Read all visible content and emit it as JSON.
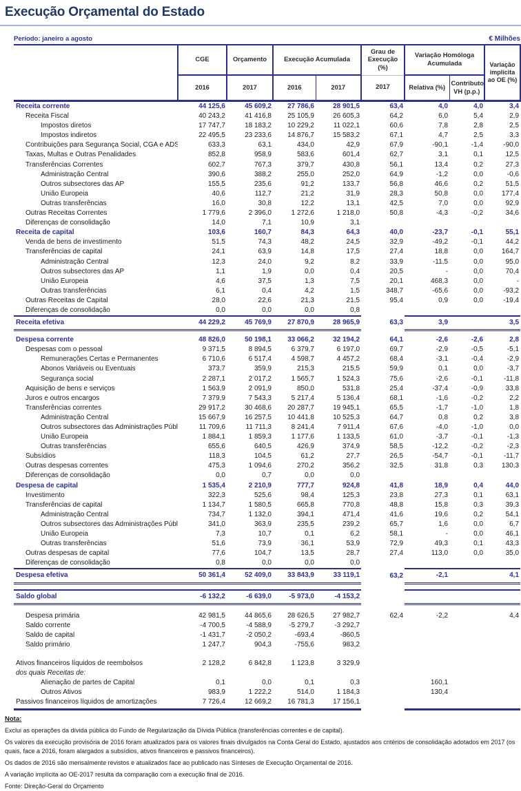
{
  "page": {
    "title": "Execução Orçamental do Estado",
    "period_label": "Período: janeiro a agosto",
    "units_label": "€ Milhões"
  },
  "colors": {
    "navy_border": "#2b2e8c",
    "navy_text": "#2e3192",
    "title_text": "#1f3864",
    "title_rule": "#a8b4d6"
  },
  "table": {
    "header": {
      "cge": "CGE",
      "orcamento": "Orçamento",
      "exec": "Execução Acumulada",
      "grau": "Grau de Execução (%)",
      "vh": "Variação Homóloga Acumulada",
      "var_oe": "Variação implícita ao OE (%)",
      "y2016a": "2016",
      "y2017a": "2017",
      "y2016b": "2016",
      "y2017b": "2017",
      "y2017c": "2017",
      "relativa": "Relativa (%)",
      "contributo": "Contributo VH (p.p.)"
    },
    "columns": [
      "label",
      "CGE 2016",
      "Orçamento 2017",
      "Execução Acumulada 2016",
      "Execução Acumulada 2017",
      "Grau de Execução (%) 2017",
      "Variação Homóloga Relativa (%)",
      "Contributo VH (p.p.)",
      "Variação implícita ao OE (%)"
    ],
    "rows": [
      {
        "t": "section",
        "label": "Receita corrente",
        "v": [
          "44 125,6",
          "45 609,2",
          "27 786,6",
          "28 901,5",
          "63,4",
          "4,0",
          "4,0",
          "3,4"
        ]
      },
      {
        "t": "l1",
        "label": "Receita Fiscal",
        "v": [
          "40 243,2",
          "41 416,8",
          "25 105,9",
          "26 605,3",
          "64,2",
          "6,0",
          "5,4",
          "2,9"
        ]
      },
      {
        "t": "l2",
        "label": "Impostos diretos",
        "v": [
          "17 747,7",
          "18 183,2",
          "10 229,2",
          "11 022,1",
          "60,6",
          "7,8",
          "2,8",
          "2,5"
        ]
      },
      {
        "t": "l2",
        "label": "Impostos indiretos",
        "v": [
          "22 495,5",
          "23 233,6",
          "14 876,7",
          "15 583,2",
          "67,1",
          "4,7",
          "2,5",
          "3,3"
        ]
      },
      {
        "t": "l1",
        "label": "Contribuições para Segurança Social, CGA e ADSE",
        "v": [
          "633,3",
          "63,1",
          "434,0",
          "42,9",
          "67,9",
          "-90,1",
          "-1,4",
          "-90,0"
        ]
      },
      {
        "t": "l1",
        "label": "Taxas, Multas e Outras Penalidades",
        "v": [
          "852,8",
          "958,9",
          "583,6",
          "601,4",
          "62,7",
          "3,1",
          "0,1",
          "12,5"
        ]
      },
      {
        "t": "l1",
        "label": "Transferências Correntes",
        "v": [
          "602,7",
          "767,3",
          "379,7",
          "430,8",
          "56,1",
          "13,4",
          "0,2",
          "27,3"
        ]
      },
      {
        "t": "l2",
        "label": "Administração Central",
        "v": [
          "390,6",
          "388,2",
          "255,0",
          "252,0",
          "64,9",
          "-1,2",
          "0,0",
          "-0,6"
        ]
      },
      {
        "t": "l2",
        "label": "Outros subsectores das AP",
        "v": [
          "155,5",
          "235,6",
          "91,2",
          "133,7",
          "56,8",
          "46,6",
          "0,2",
          "51,5"
        ]
      },
      {
        "t": "l2",
        "label": "União Europeia",
        "v": [
          "40,6",
          "112,7",
          "21,2",
          "31,9",
          "28,3",
          "50,8",
          "0,0",
          "177,4"
        ]
      },
      {
        "t": "l2",
        "label": "Outras transferências",
        "v": [
          "16,0",
          "30,8",
          "12,2",
          "13,1",
          "42,5",
          "7,0",
          "0,0",
          "92,9"
        ]
      },
      {
        "t": "l1",
        "label": "Outras Receitas Correntes",
        "v": [
          "1 779,6",
          "2 396,0",
          "1 272,6",
          "1 218,0",
          "50,8",
          "-4,3",
          "-0,2",
          "34,6"
        ]
      },
      {
        "t": "l1",
        "label": "Diferenças de consolidação",
        "v": [
          "14,0",
          "7,1",
          "10,9",
          "3,1",
          "",
          "",
          "",
          ""
        ]
      },
      {
        "t": "section",
        "label": "Receita de capital",
        "v": [
          "103,6",
          "160,7",
          "84,3",
          "64,3",
          "40,0",
          "-23,7",
          "-0,1",
          "55,1"
        ]
      },
      {
        "t": "l1",
        "label": "Venda de bens de investimento",
        "v": [
          "51,5",
          "74,3",
          "48,2",
          "24,5",
          "32,9",
          "-49,2",
          "-0,1",
          "44,2"
        ]
      },
      {
        "t": "l1",
        "label": "Transferências de capital",
        "v": [
          "24,1",
          "63,9",
          "14,8",
          "17,5",
          "27,4",
          "18,8",
          "0,0",
          "164,7"
        ]
      },
      {
        "t": "l2",
        "label": "Administração Central",
        "v": [
          "12,3",
          "24,0",
          "9,2",
          "8,2",
          "33,9",
          "-11,5",
          "0,0",
          "95,0"
        ]
      },
      {
        "t": "l2",
        "label": "Outros subsectores das AP",
        "v": [
          "1,1",
          "1,9",
          "0,0",
          "0,4",
          "20,5",
          "-",
          "0,0",
          "70,4"
        ]
      },
      {
        "t": "l2",
        "label": "União Europeia",
        "v": [
          "4,6",
          "37,5",
          "1,3",
          "7,5",
          "20,1",
          "468,3",
          "0,0",
          "-"
        ]
      },
      {
        "t": "l2",
        "label": "Outras transferências",
        "v": [
          "6,1",
          "0,4",
          "4,2",
          "1,5",
          "348,7",
          "-65,6",
          "0,0",
          "-93,2"
        ]
      },
      {
        "t": "l1",
        "label": "Outras Receitas de Capital",
        "v": [
          "28,0",
          "22,6",
          "21,3",
          "21,5",
          "95,4",
          "0,9",
          "0,0",
          "-19,4"
        ]
      },
      {
        "t": "l1",
        "label": "Diferenças de consolidação",
        "v": [
          "0,0",
          "0,0",
          "0,0",
          "0,8",
          "",
          "",
          "",
          ""
        ]
      },
      {
        "t": "total",
        "label": "Receita efetiva",
        "v": [
          "44 229,2",
          "45 769,9",
          "27 870,9",
          "28 965,9",
          "63,3",
          "3,9",
          "",
          "3,5"
        ]
      },
      {
        "t": "gap",
        "h": 6
      },
      {
        "t": "section",
        "label": "Despesa corrente",
        "v": [
          "48 826,0",
          "50 198,1",
          "33 066,2",
          "32 194,2",
          "64,1",
          "-2,6",
          "-2,6",
          "2,8"
        ]
      },
      {
        "t": "l1",
        "label": "Despesas com o pessoal",
        "v": [
          "9 371,5",
          "8 894,5",
          "6 379,7",
          "6 197,0",
          "69,7",
          "-2,9",
          "-0,5",
          "-5,1"
        ]
      },
      {
        "t": "l2",
        "label": "Remunerações Certas e Permanentes",
        "v": [
          "6 710,6",
          "6 517,4",
          "4 598,7",
          "4 457,2",
          "68,4",
          "-3,1",
          "-0,4",
          "-2,9"
        ]
      },
      {
        "t": "l2",
        "label": "Abonos Variáveis ou Eventuais",
        "v": [
          "373,7",
          "359,9",
          "215,3",
          "215,5",
          "59,9",
          "0,1",
          "0,0",
          "-3,7"
        ]
      },
      {
        "t": "l2",
        "label": "Segurança social",
        "v": [
          "2 287,1",
          "2 017,2",
          "1 565,7",
          "1 524,3",
          "75,6",
          "-2,6",
          "-0,1",
          "-11,8"
        ]
      },
      {
        "t": "l1",
        "label": "Aquisição de bens e serviços",
        "v": [
          "1 563,9",
          "2 091,9",
          "850,0",
          "531,8",
          "25,4",
          "-37,4",
          "-0,9",
          "33,8"
        ]
      },
      {
        "t": "l1",
        "label": "Juros e outros encargos",
        "v": [
          "7 379,9",
          "7 543,3",
          "5 217,4",
          "5 136,4",
          "68,1",
          "-1,6",
          "-0,2",
          "2,2"
        ]
      },
      {
        "t": "l1",
        "label": "Transferências correntes",
        "v": [
          "29 917,2",
          "30 468,6",
          "20 287,7",
          "19 945,1",
          "65,5",
          "-1,7",
          "-1,0",
          "1,8"
        ]
      },
      {
        "t": "l2",
        "label": "Administração Central",
        "v": [
          "15 667,9",
          "16 257,5",
          "10 441,8",
          "10 525,3",
          "64,7",
          "0,8",
          "0,2",
          "3,8"
        ]
      },
      {
        "t": "l2",
        "label": "Outros subsectores das Administrações Públicas",
        "v": [
          "11 709,6",
          "11 711,3",
          "8 241,4",
          "7 911,4",
          "67,6",
          "-4,0",
          "-1,0",
          "0,0"
        ]
      },
      {
        "t": "l2",
        "label": "União Europeia",
        "v": [
          "1 884,1",
          "1 859,3",
          "1 177,6",
          "1 133,5",
          "61,0",
          "-3,7",
          "-0,1",
          "-1,3"
        ]
      },
      {
        "t": "l2",
        "label": "Outras transferências",
        "v": [
          "655,6",
          "640,5",
          "426,9",
          "374,9",
          "58,5",
          "-12,2",
          "-0,2",
          "-2,3"
        ]
      },
      {
        "t": "l1",
        "label": "Subsídios",
        "v": [
          "118,3",
          "104,5",
          "61,2",
          "27,7",
          "26,5",
          "-54,7",
          "-0,1",
          "-11,7"
        ]
      },
      {
        "t": "l1",
        "label": "Outras despesas correntes",
        "v": [
          "475,3",
          "1 094,6",
          "270,2",
          "356,2",
          "32,5",
          "31,8",
          "0,3",
          "130,3"
        ]
      },
      {
        "t": "l1",
        "label": "Diferenças de consolidação",
        "v": [
          "0,0",
          "0,7",
          "0,0",
          "0,0",
          "",
          "",
          "",
          ""
        ]
      },
      {
        "t": "section",
        "label": "Despesa de capital",
        "v": [
          "1 535,4",
          "2 210,9",
          "777,7",
          "924,8",
          "41,8",
          "18,9",
          "0,4",
          "44,0"
        ]
      },
      {
        "t": "l1",
        "label": "Investimento",
        "v": [
          "322,3",
          "525,6",
          "98,4",
          "125,3",
          "23,8",
          "27,3",
          "0,1",
          "63,1"
        ]
      },
      {
        "t": "l1",
        "label": "Transferências de capital",
        "v": [
          "1 134,7",
          "1 580,5",
          "665,8",
          "770,8",
          "48,8",
          "15,8",
          "0,3",
          "39,3"
        ]
      },
      {
        "t": "l2",
        "label": "Administração Central",
        "v": [
          "734,7",
          "1 132,0",
          "394,1",
          "471,4",
          "41,6",
          "19,6",
          "0,2",
          "54,1"
        ]
      },
      {
        "t": "l2",
        "label": "Outros subsectores das Administrações Públicas",
        "v": [
          "341,0",
          "363,9",
          "235,5",
          "239,2",
          "65,7",
          "1,6",
          "0,0",
          "6,7"
        ]
      },
      {
        "t": "l2",
        "label": "União Europeia",
        "v": [
          "7,3",
          "10,7",
          "0,1",
          "6,2",
          "58,1",
          "-",
          "0,0",
          "46,1"
        ]
      },
      {
        "t": "l2",
        "label": "Outras transferências",
        "v": [
          "51,6",
          "73,9",
          "36,1",
          "53,9",
          "72,9",
          "49,3",
          "0,1",
          "43,3"
        ]
      },
      {
        "t": "l1",
        "label": "Outras despesas de capital",
        "v": [
          "77,6",
          "104,7",
          "13,5",
          "28,7",
          "27,4",
          "113,0",
          "0,0",
          "35,0"
        ]
      },
      {
        "t": "l1",
        "label": "Diferenças de consolidação",
        "v": [
          "0,8",
          "0,0",
          "0,0",
          "0,0",
          "",
          "",
          "",
          ""
        ]
      },
      {
        "t": "total",
        "label": "Despesa efetiva",
        "v": [
          "50 361,4",
          "52 409,0",
          "33 843,9",
          "33 119,1",
          "63,2",
          "-2,1",
          "",
          "4,1"
        ]
      },
      {
        "t": "gap",
        "h": 7
      },
      {
        "t": "total",
        "label": "Saldo global",
        "v": [
          "-6 132,2",
          "-6 639,0",
          "-5 973,0",
          "-4 153,2",
          "",
          "",
          "",
          ""
        ]
      },
      {
        "t": "gap",
        "h": 9
      },
      {
        "t": "memo1",
        "label": "Despesa primária",
        "v": [
          "42 981,5",
          "44 865,6",
          "28 626,5",
          "27 982,7",
          "62,4",
          "-2,2",
          "",
          "4,4"
        ]
      },
      {
        "t": "memo1",
        "label": "Saldo corrente",
        "v": [
          "-4 700,5",
          "-4 588,9",
          "-5 279,7",
          "-3 292,7",
          "",
          "",
          "",
          ""
        ]
      },
      {
        "t": "memo1",
        "label": "Saldo de capital",
        "v": [
          "-1 431,7",
          "-2 050,2",
          "-693,4",
          "-860,5",
          "",
          "",
          "",
          ""
        ]
      },
      {
        "t": "memo1",
        "label": "Saldo primário",
        "v": [
          "1 247,7",
          "904,3",
          "-755,6",
          "983,2",
          "",
          "",
          "",
          ""
        ]
      },
      {
        "t": "gap",
        "h": 13
      },
      {
        "t": "memo0",
        "label": "Ativos financeiros líquidos de reembolsos",
        "v": [
          "2 128,2",
          "6 842,8",
          "1 123,8",
          "3 329,9",
          "",
          "",
          "",
          ""
        ]
      },
      {
        "t": "italic",
        "label": "dos quais Receitas de:",
        "v": [
          "",
          "",
          "",
          "",
          "",
          "",
          "",
          ""
        ]
      },
      {
        "t": "l2",
        "label": "Alienação de partes de Capital",
        "v": [
          "0,1",
          "0,0",
          "0,1",
          "0,3",
          "",
          "160,1",
          "",
          ""
        ]
      },
      {
        "t": "l2",
        "label": "Outros Ativos",
        "v": [
          "983,9",
          "1 222,2",
          "514,0",
          "1 184,3",
          "",
          "130,4",
          "",
          ""
        ]
      },
      {
        "t": "memo0",
        "end": true,
        "label": "Passivos financeiros líquidos de amortizações",
        "v": [
          "7 726,4",
          "12 669,2",
          "16 781,3",
          "17 156,1",
          "",
          "",
          "",
          ""
        ]
      }
    ]
  },
  "notes": {
    "heading": "Nota:",
    "lines": [
      "Exclui as operações da dívida pública do Fundo de Regularização da Dívida Pública (transferências correntes e de capital).",
      "Os valores da execução provisória de 2016 foram atualizados para os valores finais divulgados na Conta Geral do Estado, ajustados aos critérios de consolidação adotados em 2017 (os quais, face a 2016, foram alargados a subsídios, ativos financeiros e passivos financeiros).",
      "Os dados de 2016 são mensalmente revistos e atualizados face ao publicado nas Sínteses de Execução Orçamental de 2016.",
      "A variação implícita ao OE-2017 resulta da comparação com a execução final de 2016.",
      "Fonte: Direção-Geral do Orçamento"
    ]
  }
}
